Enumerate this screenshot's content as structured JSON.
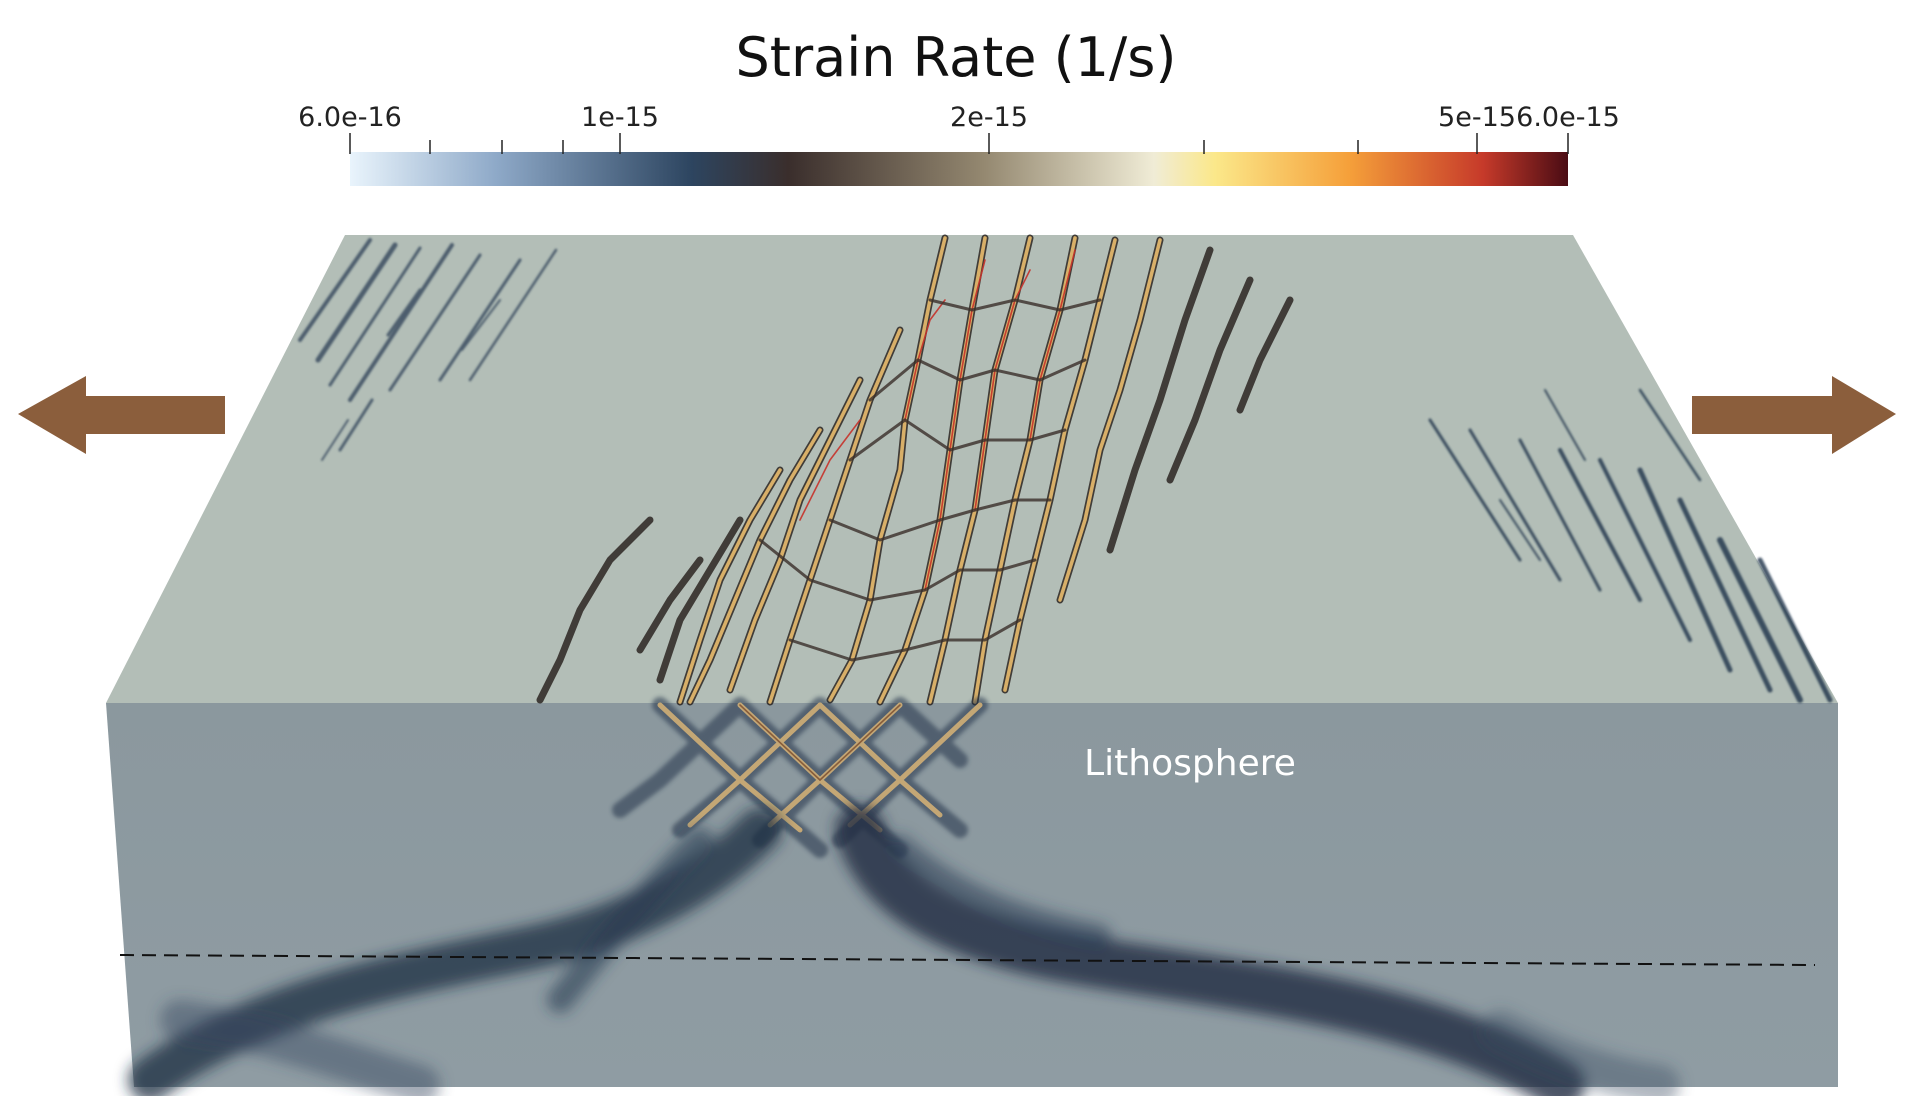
{
  "colorbar": {
    "title": "Strain Rate (1/s)",
    "tick_labels": [
      "6.0e-16",
      "1e-15",
      "2e-15",
      "5e-15",
      "6.0e-15"
    ],
    "range": [
      6e-16,
      6e-15
    ],
    "scale": "log",
    "colormap_stops": [
      "#e9f4fc",
      "#8ea9c8",
      "#2d4560",
      "#3a2e2c",
      "#948870",
      "#f0ecd6",
      "#fbe88a",
      "#f5a03a",
      "#c63a2a",
      "#4a0c14"
    ]
  },
  "block": {
    "layer_label": "Lithosphere",
    "top_surface_color": "#b3beb7",
    "front_face_color": "#8a979d",
    "lower_face_color": "#8e9ba2"
  },
  "arrows": {
    "color": "#8b5e3c",
    "left_direction": "left",
    "right_direction": "right"
  }
}
